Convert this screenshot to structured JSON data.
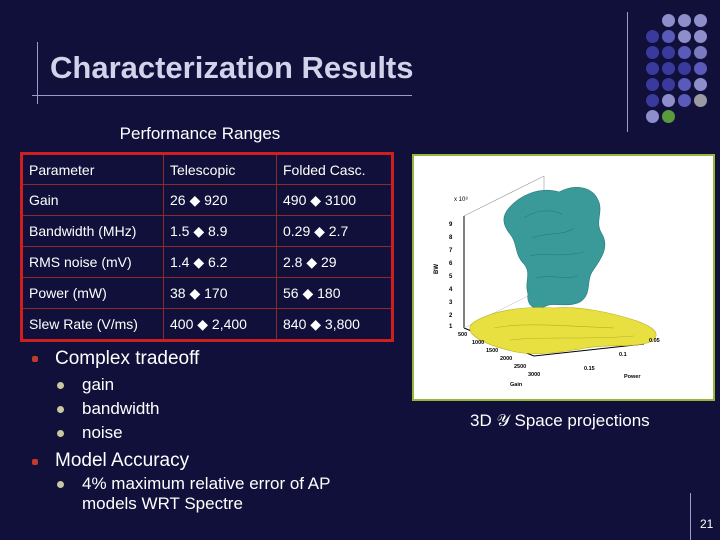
{
  "slide": {
    "title": "Characterization Results",
    "subtitle": "Performance Ranges",
    "page_number": "21"
  },
  "table": {
    "headers": [
      "Parameter",
      "Telescopic",
      "Folded Casc."
    ],
    "rows": [
      [
        "Gain",
        "26 ◆ 920",
        "490 ◆ 3100"
      ],
      [
        "Bandwidth (MHz)",
        "1.5 ◆ 8.9",
        "0.29 ◆ 2.7"
      ],
      [
        "RMS noise (mV)",
        "1.4 ◆ 6.2",
        "2.8 ◆ 29"
      ],
      [
        "Power (mW)",
        "38 ◆ 170",
        "56 ◆ 180"
      ],
      [
        "Slew Rate (V/ms)",
        "400 ◆ 2,400",
        "840 ◆ 3,800"
      ]
    ]
  },
  "bullets": {
    "tradeoff": "Complex tradeoff",
    "tradeoff_items": [
      "gain",
      "bandwidth",
      "noise"
    ],
    "accuracy": "Model Accuracy",
    "accuracy_line1": "4% maximum relative error of AP",
    "accuracy_line2": "models WRT Spectre"
  },
  "figure": {
    "caption": "3D 𝒴 Space projections",
    "z_label": "BW",
    "z_exponent": "x 10⁸",
    "z_ticks": [
      "9",
      "8",
      "7",
      "6",
      "5",
      "4",
      "3",
      "2",
      "1"
    ],
    "gain_ticks": [
      "500",
      "1000",
      "1500",
      "2000",
      "2500",
      "3000"
    ],
    "gain_label": "Gain",
    "power_ticks": [
      "0.05",
      "0.1",
      "0.15"
    ],
    "power_label": "Power"
  },
  "colors": {
    "background": "#10103a",
    "table_border": "#cc2020",
    "cyan_surface": "#3a9a9a",
    "yellow_surface": "#e8e040",
    "frame_border": "#93b83a"
  }
}
